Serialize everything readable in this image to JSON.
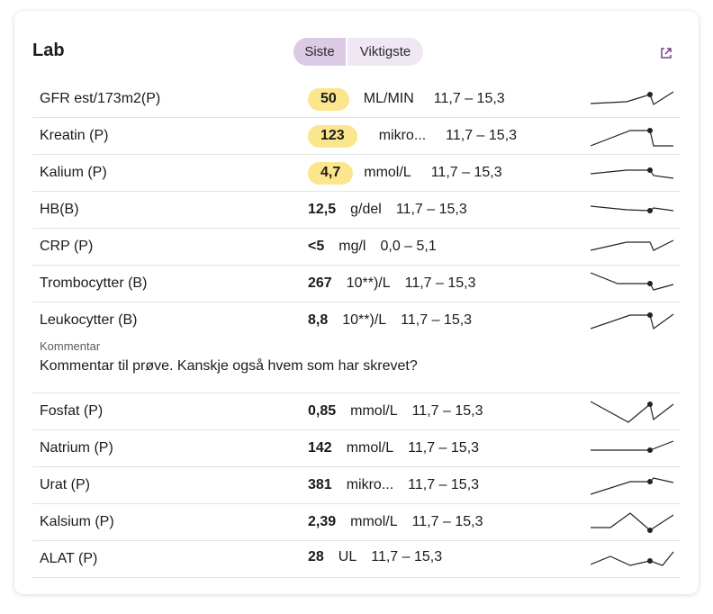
{
  "card": {
    "title": "Lab",
    "toggle": {
      "options": [
        "Siste",
        "Viktigste"
      ],
      "selected": "Siste"
    },
    "external_link_icon": "external-link-icon"
  },
  "colors": {
    "badge": "#fbe58d",
    "toggle_active": "#dcc9e4",
    "toggle_inactive": "#efe7f3",
    "accent": "#7a3f8a"
  },
  "rows_a": [
    {
      "name": "GFR est/173m2(P)",
      "value": "50",
      "unit": "ML/MIN",
      "range": "11,7 – 15,3",
      "flag": true
    },
    {
      "name": "Kreatin (P)",
      "value": "123",
      "unit": "mikro...",
      "range": "11,7 – 15,3",
      "flag": true
    },
    {
      "name": "Kalium (P)",
      "value": "4,7",
      "unit": "mmol/L",
      "range": "11,7 – 15,3",
      "flag": true
    },
    {
      "name": "HB(B)",
      "value": "12,5",
      "unit": "g/del",
      "range": "11,7 – 15,3",
      "flag": false
    },
    {
      "name": "CRP (P)",
      "value": "<5",
      "unit": "mg/l",
      "range": "0,0 – 5,1",
      "flag": false
    },
    {
      "name": "Trombocytter (B)",
      "value": "267",
      "unit": "10**)/L",
      "range": "11,7 – 15,3",
      "flag": false
    },
    {
      "name": "Leukocytter (B)",
      "value": "8,8",
      "unit": "10**)/L",
      "range": "11,7 – 15,3",
      "flag": false
    }
  ],
  "comment": {
    "label": "Kommentar",
    "text": "Kommentar til prøve. Kanskje også hvem som har skrevet?"
  },
  "rows_b": [
    {
      "name": "Fosfat (P)",
      "value": "0,85",
      "unit": "mmol/L",
      "range": "11,7 – 15,3",
      "flag": false
    },
    {
      "name": "Natrium (P)",
      "value": "142",
      "unit": "mmol/L",
      "range": "11,7 – 15,3",
      "flag": false
    },
    {
      "name": "Urat (P)",
      "value": "381",
      "unit": "mikro...",
      "range": "11,7 – 15,3",
      "flag": false
    },
    {
      "name": "Kalsium (P)",
      "value": "2,39",
      "unit": "mmol/L",
      "range": "11,7 – 15,3",
      "flag": false
    },
    {
      "name": "ALAT (P)",
      "value": "28",
      "unit": "UL",
      "range": "11,7 – 15,3",
      "flag": false
    }
  ]
}
